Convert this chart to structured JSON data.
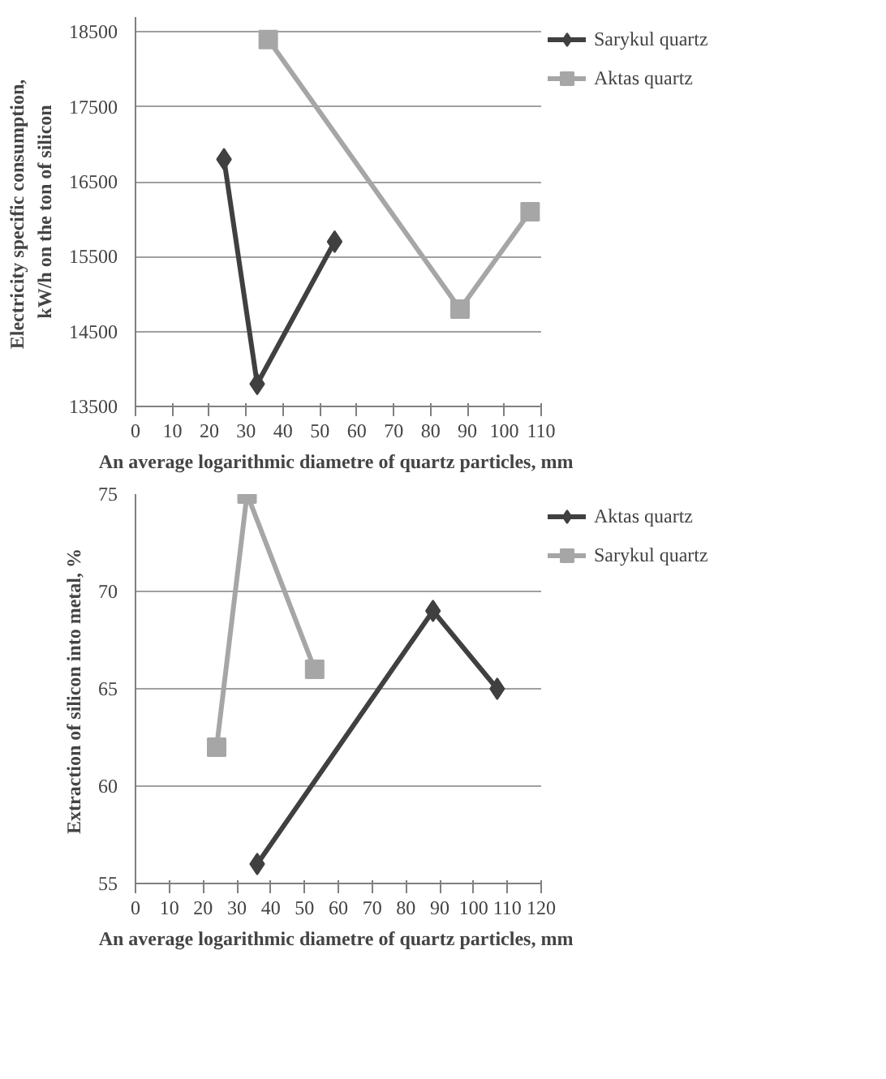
{
  "chart_data": [
    {
      "type": "line",
      "xlabel": "An average logarithmic  diametre of quartz particles, mm",
      "ylabel": "Electricity  specific consumption, kW/h on the ton of silicon",
      "xlim": [
        0,
        110
      ],
      "xticks": [
        0,
        10,
        20,
        30,
        40,
        50,
        60,
        70,
        80,
        90,
        100,
        110
      ],
      "ylim": [
        13500,
        18700
      ],
      "yticks": [
        13500,
        14500,
        15500,
        16500,
        17500,
        18500
      ],
      "grid": "y",
      "legend": "right",
      "series": [
        {
          "name": "Sarykul quartz",
          "color": "#404040",
          "marker": "diamond",
          "x": [
            24,
            33,
            54
          ],
          "values": [
            16800,
            13800,
            15700
          ]
        },
        {
          "name": "Aktas quartz",
          "color": "#a6a6a6",
          "marker": "square",
          "x": [
            36,
            88,
            107
          ],
          "values": [
            18400,
            14800,
            16100
          ]
        }
      ]
    },
    {
      "type": "line",
      "xlabel": "An average logarithmic  diametre of quartz particles, mm",
      "ylabel": "Extraction  of silicon into metal, %",
      "xlim": [
        0,
        120
      ],
      "xticks": [
        0,
        10,
        20,
        30,
        40,
        50,
        60,
        70,
        80,
        90,
        100,
        110,
        120
      ],
      "ylim": [
        55,
        75
      ],
      "yticks": [
        55,
        60,
        65,
        70,
        75
      ],
      "grid": "y",
      "legend": "right",
      "series": [
        {
          "name": "Aktas quartz",
          "color": "#404040",
          "marker": "diamond",
          "x": [
            36,
            88,
            107
          ],
          "values": [
            56,
            69,
            65
          ]
        },
        {
          "name": "Sarykul quartz",
          "color": "#a6a6a6",
          "marker": "square",
          "x": [
            24,
            33,
            53
          ],
          "values": [
            62,
            75,
            66
          ]
        }
      ]
    }
  ]
}
